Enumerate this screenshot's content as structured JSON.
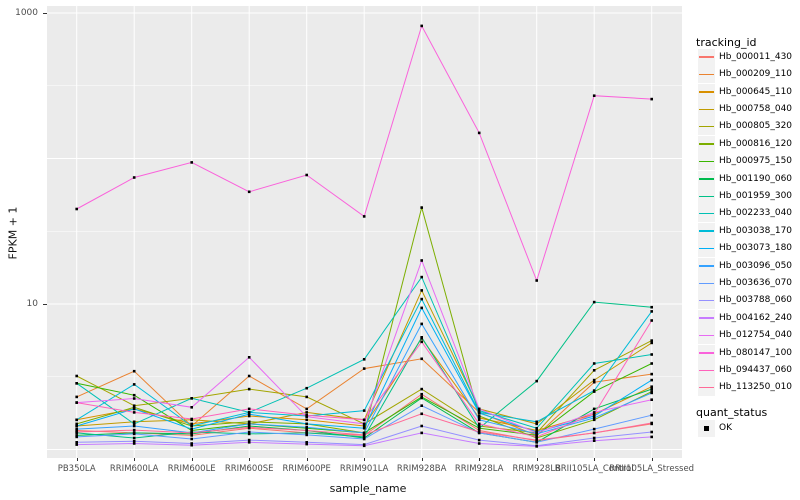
{
  "chart_data": {
    "type": "line",
    "x_type": "categorical",
    "y_scale": "log10",
    "xlabel": "sample_name",
    "ylabel": "FPKM + 1",
    "legend_title": "tracking_id",
    "legend_position": "right",
    "grid": true,
    "point_shape": "filled-square",
    "quant_status": {
      "title": "quant_status",
      "items": [
        "OK"
      ]
    },
    "y_ticks": [
      {
        "label": "1000",
        "value": 1000
      },
      {
        "label": "10",
        "value": 10
      }
    ],
    "y_gridlines_major": [
      1,
      10,
      100,
      1000
    ],
    "y_gridlines_minor": [
      3.162,
      31.62,
      316.23
    ],
    "ylim": [
      0.87,
      1120
    ],
    "categories": [
      "PB350LA",
      "RRIM600LA",
      "RRIM600LE",
      "RRIM600SE",
      "RRIM600PE",
      "RRIM901LA",
      "RRIM928BA",
      "RRIM928LA",
      "RRIM928LB",
      "RRII105LA_Control",
      "RRII105LA_Stressed"
    ],
    "style": {
      "panel_bg": "#EBEBEB",
      "grid_color": "#FFFFFF",
      "tick_text_color": "#4D4D4D",
      "axis_title_color": "#111111",
      "legend_key_bg": "#F2F2F2",
      "point_color": "#000000"
    },
    "series": [
      {
        "name": "Hb_000011_430",
        "color": "#F8766D",
        "values": [
          1.35,
          1.3,
          1.25,
          1.4,
          1.3,
          1.25,
          2.4,
          1.35,
          1.15,
          1.3,
          1.5
        ]
      },
      {
        "name": "Hb_000209_110",
        "color": "#EA8331",
        "values": [
          2.3,
          3.45,
          1.45,
          3.2,
          1.9,
          3.6,
          4.2,
          1.8,
          1.25,
          2.9,
          3.3
        ]
      },
      {
        "name": "Hb_000645_110",
        "color": "#D89000",
        "values": [
          1.6,
          1.9,
          1.5,
          1.7,
          1.6,
          1.45,
          5.8,
          1.65,
          1.35,
          1.75,
          2.7
        ]
      },
      {
        "name": "Hb_000758_040",
        "color": "#C09B00",
        "values": [
          1.45,
          1.55,
          1.6,
          1.5,
          1.8,
          1.6,
          12.4,
          1.9,
          1.5,
          3.0,
          5.4
        ]
      },
      {
        "name": "Hb_000805_320",
        "color": "#A3A500",
        "values": [
          3.2,
          2.0,
          2.25,
          2.6,
          2.3,
          1.5,
          2.6,
          1.45,
          1.3,
          3.5,
          5.6
        ]
      },
      {
        "name": "Hb_000816_120",
        "color": "#7CAE00",
        "values": [
          1.5,
          1.95,
          1.45,
          1.55,
          1.5,
          1.3,
          46.0,
          1.7,
          1.2,
          1.6,
          2.5
        ]
      },
      {
        "name": "Hb_000975_150",
        "color": "#39B600",
        "values": [
          2.85,
          2.36,
          1.35,
          1.5,
          1.4,
          1.3,
          2.3,
          1.4,
          1.25,
          2.5,
          3.9
        ]
      },
      {
        "name": "Hb_001190_060",
        "color": "#00BB4E",
        "values": [
          1.25,
          1.3,
          1.28,
          1.45,
          1.35,
          1.2,
          2.26,
          1.3,
          1.12,
          1.9,
          2.6
        ]
      },
      {
        "name": "Hb_001959_300",
        "color": "#00C087",
        "values": [
          1.3,
          1.2,
          1.32,
          1.28,
          1.3,
          1.22,
          5.9,
          1.4,
          2.95,
          10.3,
          9.5
        ]
      },
      {
        "name": "Hb_002233_040",
        "color": "#00C0B4",
        "values": [
          2.85,
          1.5,
          2.25,
          1.8,
          2.64,
          4.17,
          15.3,
          1.85,
          1.4,
          3.9,
          4.5
        ]
      },
      {
        "name": "Hb_003038_170",
        "color": "#00BCD8",
        "values": [
          1.6,
          2.8,
          1.45,
          1.8,
          1.7,
          1.85,
          10.8,
          1.8,
          1.55,
          2.54,
          8.9
        ]
      },
      {
        "name": "Hb_003073_180",
        "color": "#00B0F6",
        "values": [
          1.45,
          1.9,
          1.38,
          1.75,
          1.5,
          1.4,
          9.4,
          1.78,
          1.32,
          1.7,
          3.0
        ]
      },
      {
        "name": "Hb_003096_050",
        "color": "#35A2FF",
        "values": [
          1.38,
          1.45,
          1.3,
          1.5,
          1.42,
          1.3,
          7.3,
          1.6,
          1.28,
          1.65,
          2.45
        ]
      },
      {
        "name": "Hb_003636_070",
        "color": "#619CFF",
        "values": [
          1.22,
          1.28,
          1.18,
          1.32,
          1.26,
          1.18,
          2.0,
          1.3,
          1.12,
          1.38,
          1.72
        ]
      },
      {
        "name": "Hb_003788_060",
        "color": "#9590FF",
        "values": [
          1.12,
          1.14,
          1.1,
          1.16,
          1.12,
          1.08,
          1.45,
          1.16,
          1.06,
          1.2,
          1.32
        ]
      },
      {
        "name": "Hb_004162_240",
        "color": "#C77CFF",
        "values": [
          1.08,
          1.1,
          1.07,
          1.12,
          1.09,
          1.06,
          1.3,
          1.1,
          1.05,
          1.15,
          1.22
        ]
      },
      {
        "name": "Hb_012754_040",
        "color": "#E76BF3",
        "values": [
          2.1,
          2.24,
          1.95,
          4.3,
          1.68,
          1.5,
          19.9,
          1.9,
          1.3,
          1.8,
          2.2
        ]
      },
      {
        "name": "Hb_080147_100",
        "color": "#FA62DB",
        "values": [
          45,
          74,
          94,
          59,
          77,
          40,
          815,
          150,
          14.5,
          270,
          256
        ]
      },
      {
        "name": "Hb_094437_060",
        "color": "#FF62BC",
        "values": [
          2.1,
          1.8,
          1.62,
          1.9,
          1.72,
          1.6,
          5.5,
          1.5,
          1.22,
          1.75,
          7.7
        ]
      },
      {
        "name": "Hb_113250_010",
        "color": "#FF6A98",
        "values": [
          1.32,
          1.36,
          1.3,
          1.42,
          1.35,
          1.26,
          1.76,
          1.32,
          1.16,
          1.3,
          1.52
        ]
      }
    ]
  }
}
